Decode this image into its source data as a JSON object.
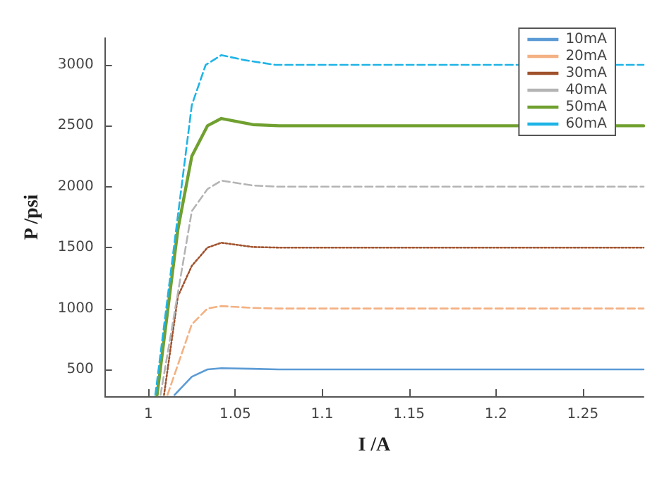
{
  "chart_data": {
    "type": "line",
    "xlabel": "I /A",
    "ylabel": "P /psi",
    "xlim": [
      0.975,
      1.285
    ],
    "ylim": [
      280,
      3220
    ],
    "xticks": [
      1,
      1.05,
      1.1,
      1.15,
      1.2,
      1.25
    ],
    "yticks": [
      500,
      1000,
      1500,
      2000,
      2500,
      3000
    ],
    "grid": false,
    "legend": "top right",
    "marker": "none",
    "series": [
      {
        "name": "10mA",
        "color": "#5b9bd5",
        "line_style": "solid",
        "x": [
          1.015,
          1.025,
          1.034,
          1.042,
          1.06,
          1.075,
          1.285
        ],
        "values": [
          290,
          440,
          500,
          510,
          505,
          500,
          500
        ]
      },
      {
        "name": "20mA",
        "color": "#f4b183",
        "line_style": "dashed",
        "x": [
          1.011,
          1.025,
          1.034,
          1.042,
          1.06,
          1.075,
          1.285
        ],
        "values": [
          290,
          870,
          1000,
          1020,
          1005,
          1000,
          1000
        ]
      },
      {
        "name": "30mA",
        "color": "#a0522d",
        "line_style": "dotted",
        "x": [
          1.009,
          1.017,
          1.025,
          1.034,
          1.042,
          1.06,
          1.075,
          1.285
        ],
        "values": [
          290,
          1100,
          1350,
          1500,
          1540,
          1505,
          1500,
          1500
        ]
      },
      {
        "name": "40mA",
        "color": "#b4b4b4",
        "line_style": "dashed",
        "x": [
          1.007,
          1.025,
          1.034,
          1.042,
          1.06,
          1.075,
          1.285
        ],
        "values": [
          290,
          1800,
          1980,
          2050,
          2010,
          2000,
          2000
        ]
      },
      {
        "name": "50mA",
        "color": "#70a030",
        "line_style": "solid",
        "x": [
          1.005,
          1.017,
          1.025,
          1.034,
          1.042,
          1.06,
          1.075,
          1.285
        ],
        "values": [
          290,
          1650,
          2250,
          2500,
          2560,
          2510,
          2500,
          2500
        ]
      },
      {
        "name": "60mA",
        "color": "#1fb4e6",
        "line_style": "dashed",
        "x": [
          1.004,
          1.025,
          1.033,
          1.042,
          1.055,
          1.073,
          1.285
        ],
        "values": [
          290,
          2670,
          3000,
          3080,
          3040,
          3000,
          3000
        ]
      }
    ]
  }
}
